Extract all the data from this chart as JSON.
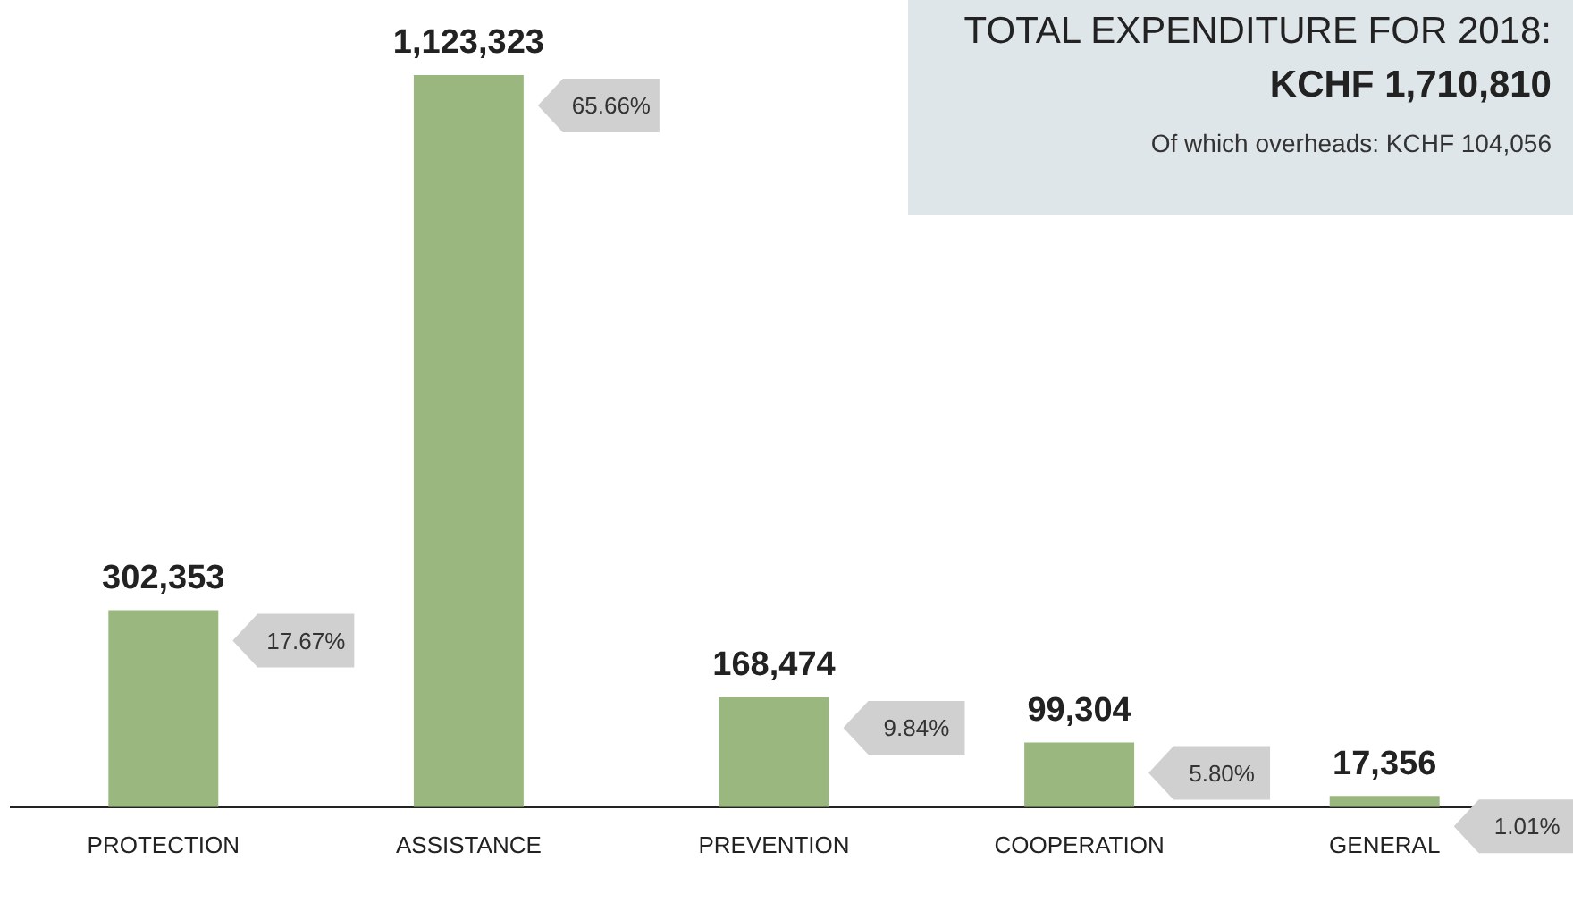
{
  "chart_data": {
    "type": "bar",
    "title": "TOTAL EXPENDITURE FOR 2018:",
    "subtitle": "KCHF 1,710,810",
    "categories": [
      "PROTECTION",
      "ASSISTANCE",
      "PREVENTION",
      "COOPERATION",
      "GENERAL"
    ],
    "values": [
      302353,
      1123323,
      168474,
      99304,
      17356
    ],
    "value_labels": [
      "302,353",
      "1,123,323",
      "168,474",
      "99,304",
      "17,356"
    ],
    "color": "#9ab77f",
    "annotations": [
      "Of which overheads: KCHF 104,056",
      "17.67%",
      "65.66%",
      "9.84%",
      "5.80%",
      "1.01%"
    ],
    "tick_labels": "x",
    "grid": false,
    "legend": false
  }
}
